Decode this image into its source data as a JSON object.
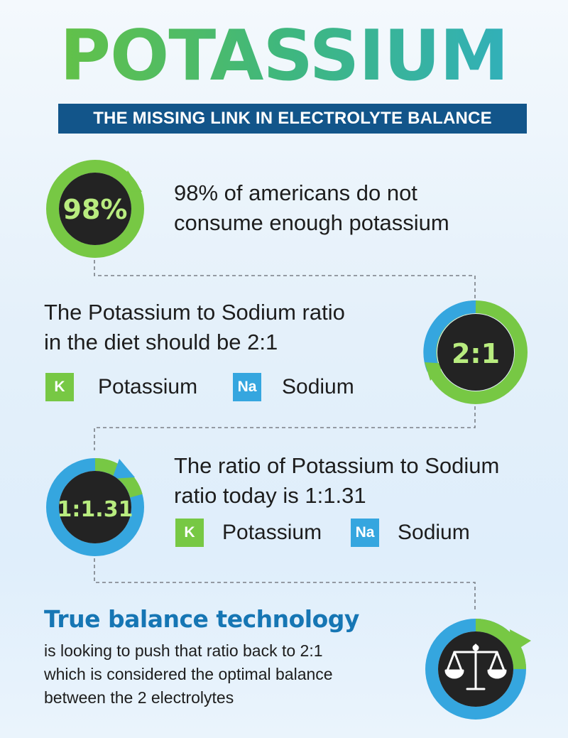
{
  "header": {
    "title": "POTASSIUM",
    "subtitle": "THE MISSING LINK IN ELECTROLYTE BALANCE"
  },
  "sections": [
    {
      "badge": "98%",
      "lines": [
        "98% of americans do not",
        "consume enough potassium"
      ]
    },
    {
      "badge": "2:1",
      "lines": [
        "The Potassium to Sodium ratio",
        "in the diet should be 2:1"
      ],
      "legend": {
        "k_symbol": "K",
        "k_label": "Potassium",
        "na_symbol": "Na",
        "na_label": "Sodium"
      }
    },
    {
      "badge": "1:1.31",
      "lines": [
        "The ratio of Potassium to Sodium",
        "ratio today is 1:1.31"
      ],
      "legend": {
        "k_symbol": "K",
        "k_label": "Potassium",
        "na_symbol": "Na",
        "na_label": "Sodium"
      }
    },
    {
      "badge_icon": "scale-icon",
      "headline": "True balance technology",
      "lines": [
        "is looking to push that ratio back to 2:1",
        "which is considered the optimal balance",
        "between the 2 electrolytes"
      ]
    }
  ],
  "colors": {
    "potassium_green": "#77c844",
    "sodium_blue": "#35a6df",
    "banner_navy": "#12558a",
    "headline_blue": "#1676b4",
    "badge_dark": "#222222"
  }
}
